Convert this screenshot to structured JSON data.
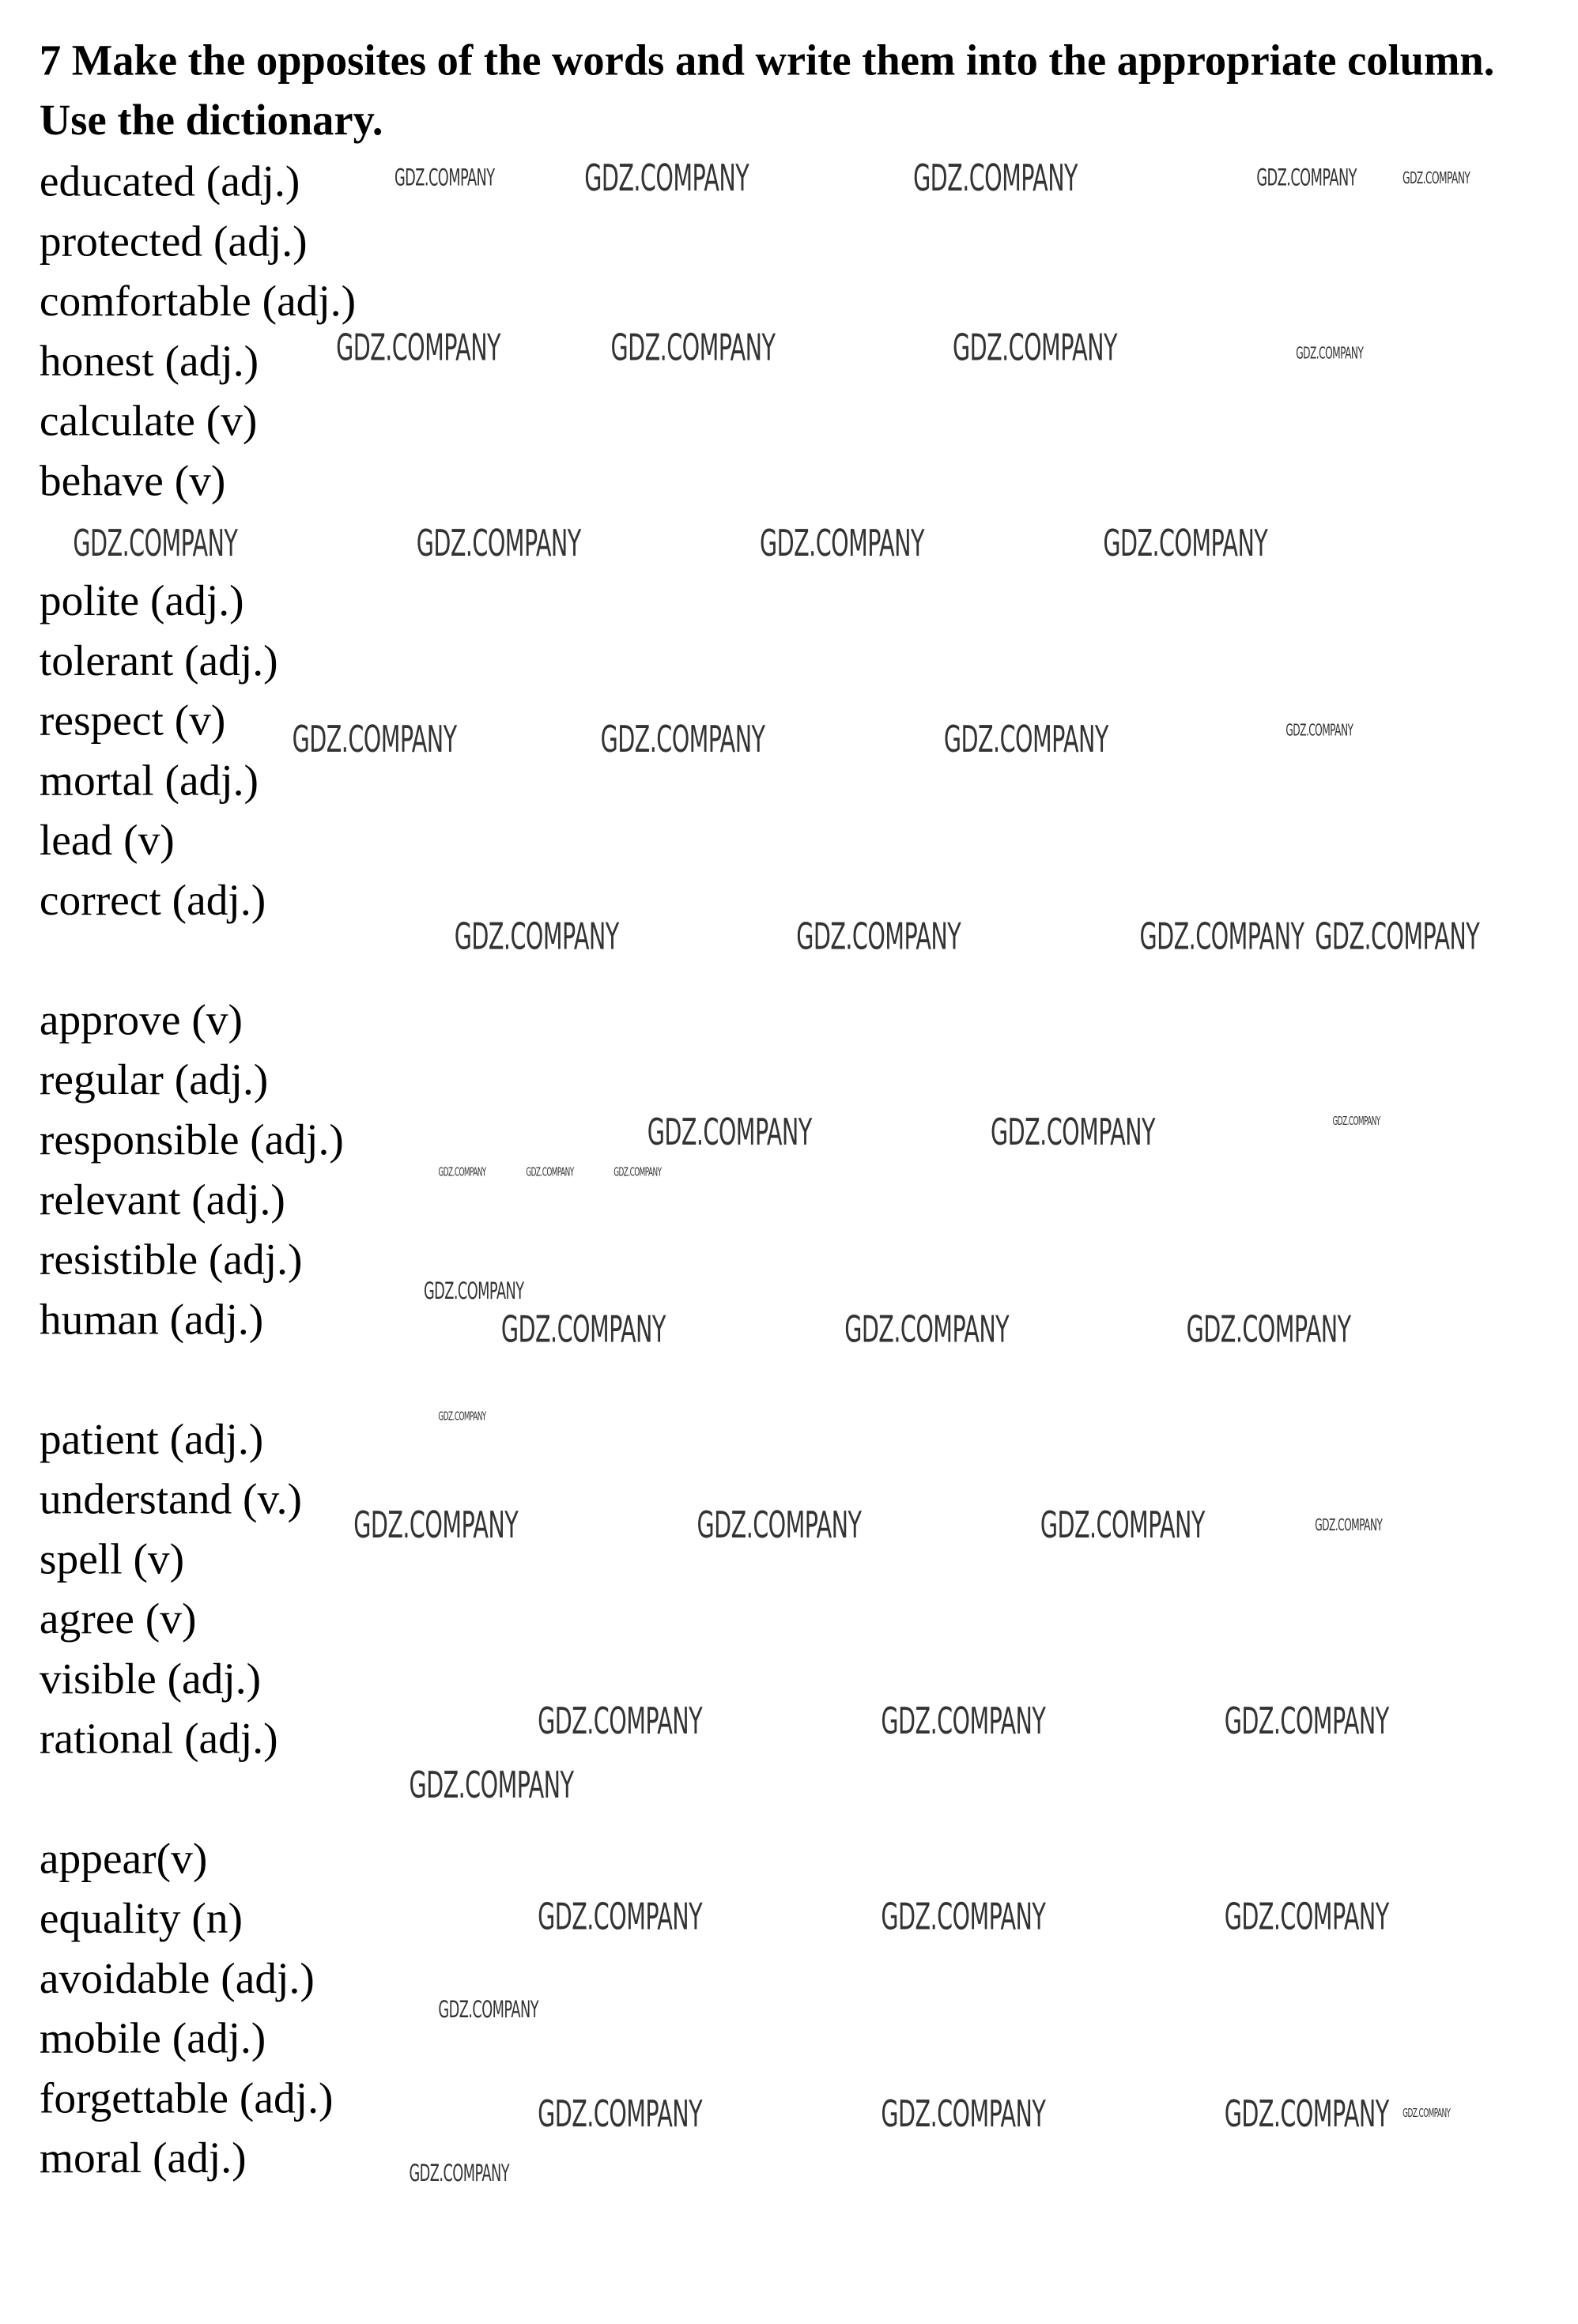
{
  "exercise": {
    "title": "7 Make the opposites of the words and write them into the appropriate column. Use the dictionary.",
    "words": [
      "educated (adj.)",
      "protected (adj.)",
      "comfortable (adj.)",
      "honest (adj.)",
      "calculate (v)",
      "behave (v)",
      "",
      "polite (adj.)",
      "tolerant (adj.)",
      "respect (v)",
      "mortal (adj.)",
      "lead (v)",
      "correct (adj.)",
      "",
      "approve (v)",
      "regular (adj.)",
      "responsible (adj.)",
      "relevant (adj.)",
      "resistible (adj.)",
      "human (adj.)",
      "",
      "patient (adj.)",
      "understand (v.)",
      "spell (v)",
      "agree (v)",
      "visible (adj.)",
      "rational (adj.)",
      "",
      "appear(v)",
      "equality (n)",
      "avoidable (adj.)",
      "mobile (adj.)",
      "forgettable (adj.)",
      "moral (adj.)"
    ]
  },
  "watermark": {
    "text": "GDZ.COMPANY",
    "color": "#333333"
  }
}
